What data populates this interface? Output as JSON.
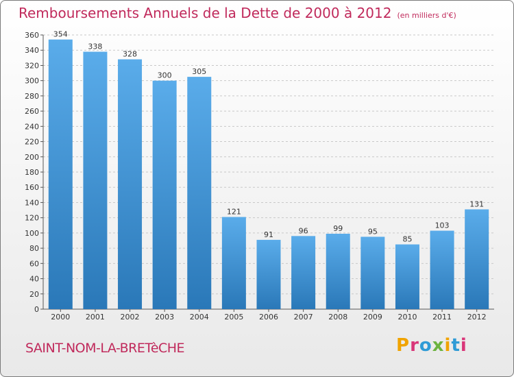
{
  "header": {
    "title": "Remboursements Annuels de la Dette de 2000 à 2012",
    "unit": "(en milliers d'€)"
  },
  "footer": {
    "commune": "SAINT-NOM-LA-BRETèCHE",
    "logo_text": "Proxiti"
  },
  "colors": {
    "title": "#c0295b",
    "bar_top": "#5aacea",
    "bar_bottom": "#2a78b8",
    "grid": "#c8c8c8",
    "logo_letters": [
      "#f0a300",
      "#d93679",
      "#2f9bd6",
      "#6cb33f",
      "#f0a300",
      "#2f9bd6",
      "#d93679"
    ]
  },
  "chart_data": {
    "type": "bar",
    "title": "Remboursements Annuels de la Dette de 2000 à 2012",
    "categories": [
      "2000",
      "2001",
      "2002",
      "2003",
      "2004",
      "2005",
      "2006",
      "2007",
      "2008",
      "2009",
      "2010",
      "2011",
      "2012"
    ],
    "values": [
      354,
      338,
      328,
      300,
      305,
      121,
      91,
      96,
      99,
      95,
      85,
      103,
      131
    ],
    "ylim": [
      0,
      360
    ],
    "yticks": [
      0,
      20,
      40,
      60,
      80,
      100,
      120,
      140,
      160,
      180,
      200,
      220,
      240,
      260,
      280,
      300,
      320,
      340,
      360
    ],
    "grid": true,
    "data_labels": true
  }
}
